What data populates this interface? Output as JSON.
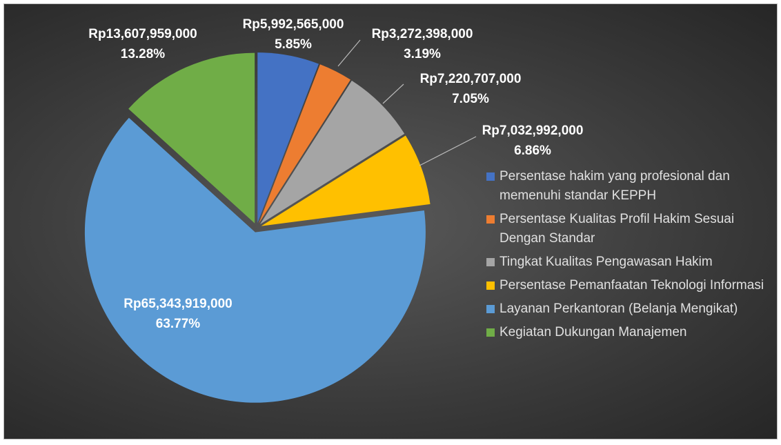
{
  "chart_data": {
    "type": "pie",
    "categories": [
      "Persentase hakim yang profesional dan memenuhi standar KEPPH",
      "Persentase Kualitas Profil Hakim Sesuai Dengan Standar",
      "Tingkat Kualitas Pengawasan Hakim",
      "Persentase Pemanfaatan Teknologi Informasi",
      "Layanan Perkantoran (Belanja Mengikat)",
      "Kegiatan Dukungan Manajemen"
    ],
    "values": [
      5992565000,
      3272398000,
      7220707000,
      7032992000,
      65343919000,
      13607959000
    ],
    "value_labels": [
      "Rp5,992,565,000",
      "Rp3,272,398,000",
      "Rp7,220,707,000",
      "Rp7,032,992,000",
      "Rp65,343,919,000",
      "Rp13,607,959,000"
    ],
    "percent_labels": [
      "5.85%",
      "3.19%",
      "7.05%",
      "6.86%",
      "63.77%",
      "13.28%"
    ],
    "colors": [
      "#4472c4",
      "#ed7d31",
      "#a5a5a5",
      "#ffc000",
      "#5b9bd5",
      "#70ad47"
    ],
    "legend": "right"
  }
}
